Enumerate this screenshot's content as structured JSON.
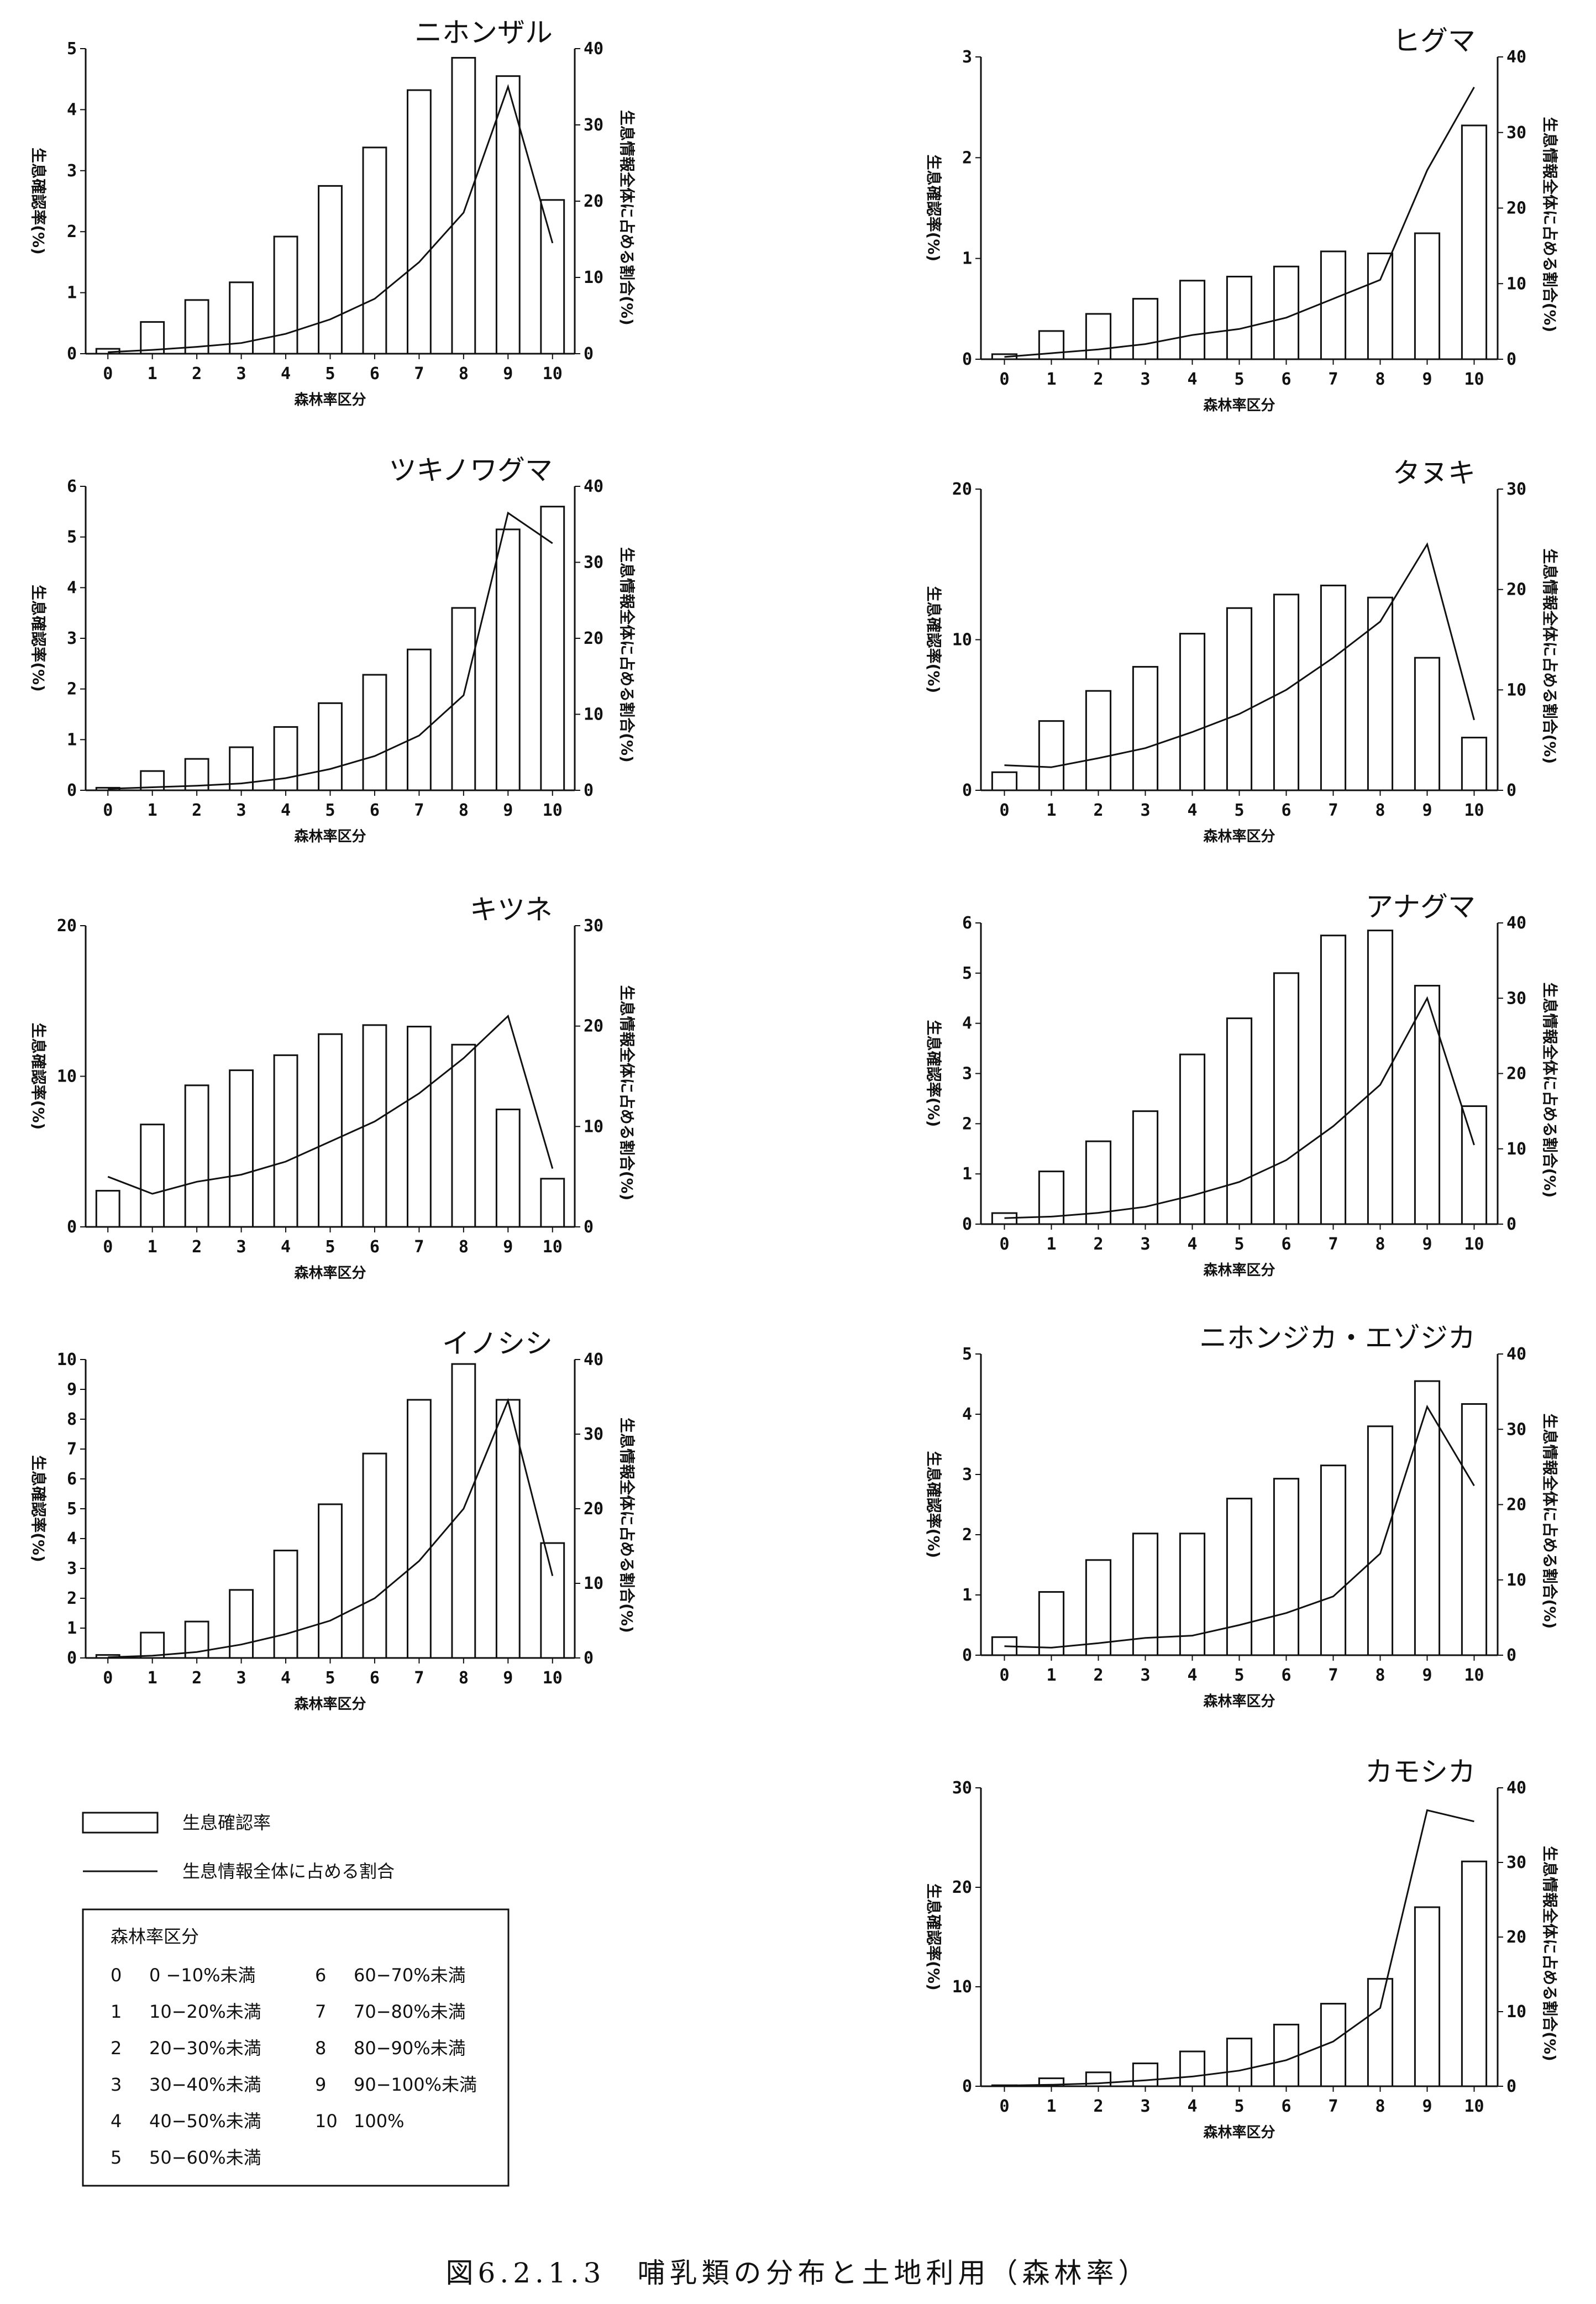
{
  "caption": "図6.2.1.3　哺乳類の分布と土地利用（森林率）",
  "legend": {
    "bar_label": "生息確認率",
    "line_label": "生息情報全体に占める割合",
    "class_title": "森林率区分",
    "classes": [
      {
        "code": "0",
        "range": "0 −10%未満"
      },
      {
        "code": "1",
        "range": "10−20%未満"
      },
      {
        "code": "2",
        "range": "20−30%未満"
      },
      {
        "code": "3",
        "range": "30−40%未満"
      },
      {
        "code": "4",
        "range": "40−50%未満"
      },
      {
        "code": "5",
        "range": "50−60%未満"
      },
      {
        "code": "6",
        "range": "60−70%未満"
      },
      {
        "code": "7",
        "range": "70−80%未満"
      },
      {
        "code": "8",
        "range": "80−90%未満"
      },
      {
        "code": "9",
        "range": "90−100%未満"
      },
      {
        "code": "10",
        "range": "100%"
      }
    ]
  },
  "chart_data": [
    {
      "type": "bar+line",
      "title": "ニホンザル",
      "xlabel": "森林率区分",
      "ylabel": "生息確認率(%)",
      "y2label": "生息情報全体に占める割合(%)",
      "categories": [
        "0",
        "1",
        "2",
        "3",
        "4",
        "5",
        "6",
        "7",
        "8",
        "9",
        "10"
      ],
      "ylim": [
        0,
        5
      ],
      "yticks": [
        0,
        1,
        2,
        3,
        4,
        5
      ],
      "y2lim": [
        0,
        40
      ],
      "y2ticks": [
        0,
        10,
        20,
        30,
        40
      ],
      "series": [
        {
          "name": "生息確認率",
          "kind": "bar",
          "axis": "left",
          "values": [
            0.08,
            0.52,
            0.88,
            1.17,
            1.92,
            2.75,
            3.38,
            4.32,
            4.85,
            4.55,
            2.52
          ]
        },
        {
          "name": "生息情報全体に占める割合",
          "kind": "line",
          "axis": "right",
          "values": [
            0.2,
            0.5,
            0.9,
            1.4,
            2.6,
            4.5,
            7.2,
            12,
            18.5,
            35,
            14.5
          ]
        }
      ]
    },
    {
      "type": "bar+line",
      "title": "ヒグマ",
      "xlabel": "森林率区分",
      "ylabel": "生息確認率(%)",
      "y2label": "生息情報全体に占める割合(%)",
      "categories": [
        "0",
        "1",
        "2",
        "3",
        "4",
        "5",
        "6",
        "7",
        "8",
        "9",
        "10"
      ],
      "ylim": [
        0,
        3
      ],
      "yticks": [
        0,
        1,
        2,
        3
      ],
      "y2lim": [
        0,
        40
      ],
      "y2ticks": [
        0,
        10,
        20,
        30,
        40
      ],
      "series": [
        {
          "name": "生息確認率",
          "kind": "bar",
          "axis": "left",
          "values": [
            0.05,
            0.28,
            0.45,
            0.6,
            0.78,
            0.82,
            0.92,
            1.07,
            1.05,
            1.25,
            2.32
          ]
        },
        {
          "name": "生息情報全体に占める割合",
          "kind": "line",
          "axis": "right",
          "values": [
            0.3,
            0.8,
            1.3,
            2,
            3.2,
            4,
            5.5,
            8,
            10.5,
            25,
            36
          ]
        }
      ]
    },
    {
      "type": "bar+line",
      "title": "ツキノワグマ",
      "xlabel": "森林率区分",
      "ylabel": "生息確認率(%)",
      "y2label": "生息情報全体に占める割合(%)",
      "categories": [
        "0",
        "1",
        "2",
        "3",
        "4",
        "5",
        "6",
        "7",
        "8",
        "9",
        "10"
      ],
      "ylim": [
        0,
        6
      ],
      "yticks": [
        0,
        1,
        2,
        3,
        4,
        5,
        6
      ],
      "y2lim": [
        0,
        40
      ],
      "y2ticks": [
        0,
        10,
        20,
        30,
        40
      ],
      "series": [
        {
          "name": "生息確認率",
          "kind": "bar",
          "axis": "left",
          "values": [
            0.05,
            0.38,
            0.62,
            0.85,
            1.25,
            1.72,
            2.28,
            2.78,
            3.6,
            5.15,
            5.6
          ]
        },
        {
          "name": "生息情報全体に占める割合",
          "kind": "line",
          "axis": "right",
          "values": [
            0.2,
            0.4,
            0.6,
            0.9,
            1.6,
            2.8,
            4.5,
            7.2,
            12.5,
            36.5,
            32.5
          ]
        }
      ]
    },
    {
      "type": "bar+line",
      "title": "タヌキ",
      "xlabel": "森林率区分",
      "ylabel": "生息確認率(%)",
      "y2label": "生息情報全体に占める割合(%)",
      "categories": [
        "0",
        "1",
        "2",
        "3",
        "4",
        "5",
        "6",
        "7",
        "8",
        "9",
        "10"
      ],
      "ylim": [
        0,
        20
      ],
      "yticks": [
        0,
        10,
        20
      ],
      "y2lim": [
        0,
        30
      ],
      "y2ticks": [
        0,
        10,
        20,
        30
      ],
      "series": [
        {
          "name": "生息確認率",
          "kind": "bar",
          "axis": "left",
          "values": [
            1.2,
            4.6,
            6.6,
            8.2,
            10.4,
            12.1,
            13,
            13.6,
            12.8,
            8.8,
            3.5
          ]
        },
        {
          "name": "生息情報全体に占める割合",
          "kind": "line",
          "axis": "right",
          "values": [
            2.5,
            2.3,
            3.2,
            4.2,
            5.8,
            7.6,
            10,
            13.2,
            16.8,
            24.5,
            7
          ]
        }
      ]
    },
    {
      "type": "bar+line",
      "title": "キツネ",
      "xlabel": "森林率区分",
      "ylabel": "生息確認率(%)",
      "y2label": "生息情報全体に占める割合(%)",
      "categories": [
        "0",
        "1",
        "2",
        "3",
        "4",
        "5",
        "6",
        "7",
        "8",
        "9",
        "10"
      ],
      "ylim": [
        0,
        20
      ],
      "yticks": [
        0,
        10,
        20
      ],
      "y2lim": [
        0,
        30
      ],
      "y2ticks": [
        0,
        10,
        20,
        30
      ],
      "series": [
        {
          "name": "生息確認率",
          "kind": "bar",
          "axis": "left",
          "values": [
            2.4,
            6.8,
            9.4,
            10.4,
            11.4,
            12.8,
            13.4,
            13.3,
            12.1,
            7.8,
            3.2
          ]
        },
        {
          "name": "生息情報全体に占める割合",
          "kind": "line",
          "axis": "right",
          "values": [
            5,
            3.3,
            4.5,
            5.2,
            6.5,
            8.5,
            10.5,
            13.3,
            16.8,
            21,
            5.8
          ]
        }
      ]
    },
    {
      "type": "bar+line",
      "title": "アナグマ",
      "xlabel": "森林率区分",
      "ylabel": "生息確認率(%)",
      "y2label": "生息情報全体に占める割合(%)",
      "categories": [
        "0",
        "1",
        "2",
        "3",
        "4",
        "5",
        "6",
        "7",
        "8",
        "9",
        "10"
      ],
      "ylim": [
        0,
        6
      ],
      "yticks": [
        0,
        1,
        2,
        3,
        4,
        5,
        6
      ],
      "y2lim": [
        0,
        40
      ],
      "y2ticks": [
        0,
        10,
        20,
        30,
        40
      ],
      "series": [
        {
          "name": "生息確認率",
          "kind": "bar",
          "axis": "left",
          "values": [
            0.22,
            1.05,
            1.65,
            2.25,
            3.38,
            4.1,
            5,
            5.75,
            5.85,
            4.75,
            2.35
          ]
        },
        {
          "name": "生息情報全体に占める割合",
          "kind": "line",
          "axis": "right",
          "values": [
            0.8,
            1,
            1.5,
            2.3,
            3.8,
            5.6,
            8.5,
            13,
            18.5,
            30,
            10.5
          ]
        }
      ]
    },
    {
      "type": "bar+line",
      "title": "イノシシ",
      "xlabel": "森林率区分",
      "ylabel": "生息確認率(%)",
      "y2label": "生息情報全体に占める割合(%)",
      "categories": [
        "0",
        "1",
        "2",
        "3",
        "4",
        "5",
        "6",
        "7",
        "8",
        "9",
        "10"
      ],
      "ylim": [
        0,
        10
      ],
      "yticks": [
        0,
        1,
        2,
        3,
        4,
        5,
        6,
        7,
        8,
        9,
        10
      ],
      "y2lim": [
        0,
        40
      ],
      "y2ticks": [
        0,
        10,
        20,
        30,
        40
      ],
      "series": [
        {
          "name": "生息確認率",
          "kind": "bar",
          "axis": "left",
          "values": [
            0.1,
            0.85,
            1.22,
            2.28,
            3.6,
            5.15,
            6.85,
            8.65,
            9.85,
            8.65,
            3.85
          ]
        },
        {
          "name": "生息情報全体に占める割合",
          "kind": "line",
          "axis": "right",
          "values": [
            0.1,
            0.3,
            0.8,
            1.8,
            3.2,
            5,
            8,
            13,
            20,
            34.5,
            11
          ]
        }
      ]
    },
    {
      "type": "bar+line",
      "title": "ニホンジカ・エゾジカ",
      "xlabel": "森林率区分",
      "ylabel": "生息確認率(%)",
      "y2label": "生息情報全体に占める割合(%)",
      "categories": [
        "0",
        "1",
        "2",
        "3",
        "4",
        "5",
        "6",
        "7",
        "8",
        "9",
        "10"
      ],
      "ylim": [
        0,
        5
      ],
      "yticks": [
        0,
        1,
        2,
        3,
        4,
        5
      ],
      "y2lim": [
        0,
        40
      ],
      "y2ticks": [
        0,
        10,
        20,
        30,
        40
      ],
      "series": [
        {
          "name": "生息確認率",
          "kind": "bar",
          "axis": "left",
          "values": [
            0.3,
            1.05,
            1.58,
            2.02,
            2.02,
            2.6,
            2.93,
            3.15,
            3.8,
            4.55,
            4.17
          ]
        },
        {
          "name": "生息情報全体に占める割合",
          "kind": "line",
          "axis": "right",
          "values": [
            1.2,
            1,
            1.6,
            2.3,
            2.6,
            4,
            5.6,
            7.8,
            13.5,
            33,
            22.5
          ]
        }
      ]
    },
    {
      "type": "bar+line",
      "title": "カモシカ",
      "xlabel": "森林率区分",
      "ylabel": "生息確認率(%)",
      "y2label": "生息情報全体に占める割合(%)",
      "categories": [
        "0",
        "1",
        "2",
        "3",
        "4",
        "5",
        "6",
        "7",
        "8",
        "9",
        "10"
      ],
      "ylim": [
        0,
        30
      ],
      "yticks": [
        0,
        10,
        20,
        30
      ],
      "y2lim": [
        0,
        40
      ],
      "y2ticks": [
        0,
        10,
        20,
        30,
        40
      ],
      "series": [
        {
          "name": "生息確認率",
          "kind": "bar",
          "axis": "left",
          "values": [
            0.1,
            0.8,
            1.4,
            2.3,
            3.5,
            4.8,
            6.2,
            8.3,
            10.8,
            18,
            22.6
          ]
        },
        {
          "name": "生息情報全体に占める割合",
          "kind": "line",
          "axis": "right",
          "values": [
            0.1,
            0.2,
            0.4,
            0.8,
            1.3,
            2.1,
            3.5,
            6,
            10.5,
            37,
            35.5
          ]
        }
      ]
    }
  ]
}
